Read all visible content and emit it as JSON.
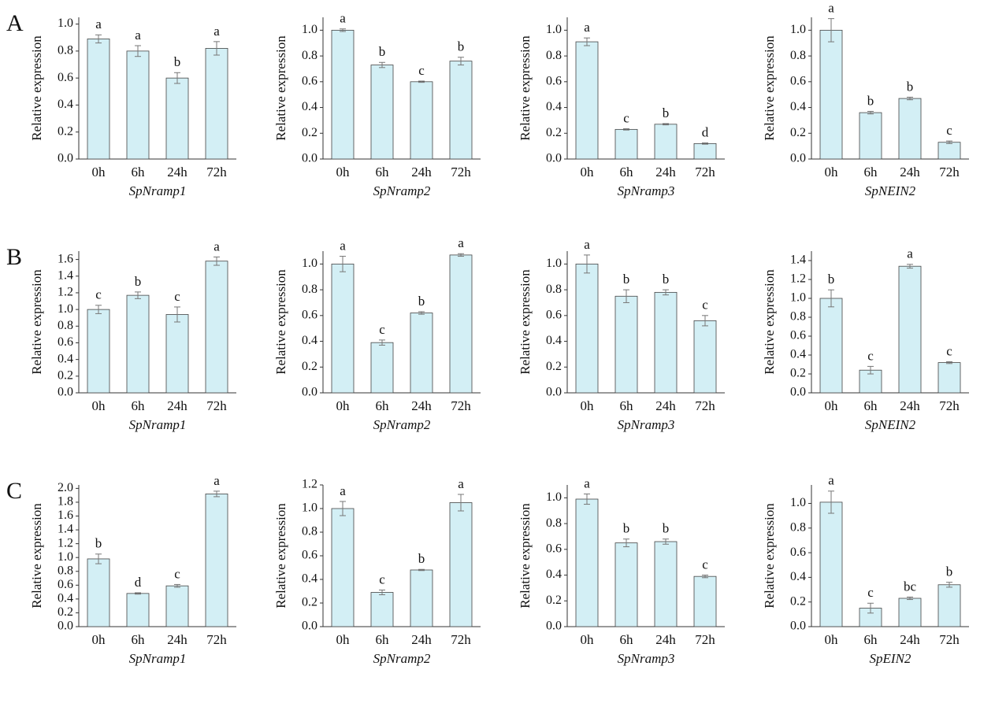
{
  "panel_labels": [
    "A",
    "B",
    "C"
  ],
  "chart_data": [
    {
      "type": "bar",
      "y_label": "Relative expression",
      "x_label": "SpNramp1",
      "categories": [
        "0h",
        "6h",
        "24h",
        "72h"
      ],
      "values": [
        0.89,
        0.8,
        0.6,
        0.82
      ],
      "errors": [
        0.03,
        0.04,
        0.04,
        0.05
      ],
      "annotations": [
        "a",
        "a",
        "b",
        "a"
      ],
      "ylim": [
        0,
        1.05
      ],
      "yticks": [
        {
          "value": 0,
          "label": "0.0"
        },
        0.2,
        0.4,
        0.6,
        0.8,
        {
          "value": 1,
          "label": "1.0"
        }
      ],
      "color": "#d3eff5"
    },
    {
      "type": "bar",
      "y_label": "Relative expression",
      "x_label": "SpNramp2",
      "categories": [
        "0h",
        "6h",
        "24h",
        "72h"
      ],
      "values": [
        1.0,
        0.73,
        0.6,
        0.76
      ],
      "errors": [
        0.01,
        0.02,
        0.005,
        0.03
      ],
      "annotations": [
        "a",
        "b",
        "c",
        "b"
      ],
      "ylim": [
        0,
        1.1
      ],
      "yticks": [
        {
          "value": 0,
          "label": "0.0"
        },
        0.2,
        0.4,
        0.6,
        0.8,
        {
          "value": 1,
          "label": "1.0"
        }
      ],
      "color": "#d3eff5"
    },
    {
      "type": "bar",
      "y_label": "Relative expression",
      "x_label": "SpNramp3",
      "categories": [
        "0h",
        "6h",
        "24h",
        "72h"
      ],
      "values": [
        0.91,
        0.23,
        0.27,
        0.12
      ],
      "errors": [
        0.03,
        0.005,
        0.005,
        0.005
      ],
      "annotations": [
        "a",
        "c",
        "b",
        "d"
      ],
      "ylim": [
        0,
        1.1
      ],
      "yticks": [
        {
          "value": 0,
          "label": "0.0"
        },
        0.2,
        0.4,
        0.6,
        0.8,
        {
          "value": 1,
          "label": "1.0"
        }
      ],
      "color": "#d3eff5"
    },
    {
      "type": "bar",
      "y_label": "Relative expression",
      "x_label": "SpNEIN2",
      "categories": [
        "0h",
        "6h",
        "24h",
        "72h"
      ],
      "values": [
        1.0,
        0.36,
        0.47,
        0.13
      ],
      "errors": [
        0.09,
        0.01,
        0.01,
        0.01
      ],
      "annotations": [
        "a",
        "b",
        "b",
        "c"
      ],
      "ylim": [
        0,
        1.1
      ],
      "yticks": [
        {
          "value": 0,
          "label": "0.0"
        },
        0.2,
        0.4,
        0.6,
        0.8,
        {
          "value": 1,
          "label": "1.0"
        }
      ],
      "color": "#d3eff5"
    },
    {
      "type": "bar",
      "y_label": "Relative expression",
      "x_label": "SpNramp1",
      "categories": [
        "0h",
        "6h",
        "24h",
        "72h"
      ],
      "values": [
        1.0,
        1.17,
        0.94,
        1.58
      ],
      "errors": [
        0.05,
        0.04,
        0.09,
        0.05
      ],
      "annotations": [
        "c",
        "b",
        "c",
        "a"
      ],
      "ylim": [
        0,
        1.7
      ],
      "yticks": [
        {
          "value": 0,
          "label": "0.0"
        },
        0.2,
        0.4,
        0.6,
        0.8,
        {
          "value": 1,
          "label": "1.0"
        },
        1.2,
        1.4,
        1.6
      ],
      "color": "#d3eff5"
    },
    {
      "type": "bar",
      "y_label": "Relative expression",
      "x_label": "SpNramp2",
      "categories": [
        "0h",
        "6h",
        "24h",
        "72h"
      ],
      "values": [
        1.0,
        0.39,
        0.62,
        1.07
      ],
      "errors": [
        0.06,
        0.02,
        0.01,
        0.01
      ],
      "annotations": [
        "a",
        "c",
        "b",
        "a"
      ],
      "ylim": [
        0,
        1.1
      ],
      "yticks": [
        {
          "value": 0,
          "label": "0.0"
        },
        0.2,
        0.4,
        0.6,
        0.8,
        {
          "value": 1,
          "label": "1.0"
        }
      ],
      "color": "#d3eff5"
    },
    {
      "type": "bar",
      "y_label": "Relative expression",
      "x_label": "SpNramp3",
      "categories": [
        "0h",
        "6h",
        "24h",
        "72h"
      ],
      "values": [
        1.0,
        0.75,
        0.78,
        0.56
      ],
      "errors": [
        0.07,
        0.05,
        0.02,
        0.04
      ],
      "annotations": [
        "a",
        "b",
        "b",
        "c"
      ],
      "ylim": [
        0,
        1.1
      ],
      "yticks": [
        {
          "value": 0,
          "label": "0.0"
        },
        0.2,
        0.4,
        0.6,
        0.8,
        {
          "value": 1,
          "label": "1.0"
        }
      ],
      "color": "#d3eff5"
    },
    {
      "type": "bar",
      "y_label": "Relative expression",
      "x_label": "SpNEIN2",
      "categories": [
        "0h",
        "6h",
        "24h",
        "72h"
      ],
      "values": [
        1.0,
        0.24,
        1.34,
        0.32
      ],
      "errors": [
        0.09,
        0.04,
        0.02,
        0.01
      ],
      "annotations": [
        "b",
        "c",
        "a",
        "c"
      ],
      "ylim": [
        0,
        1.5
      ],
      "yticks": [
        {
          "value": 0,
          "label": "0.0"
        },
        0.2,
        0.4,
        0.6,
        0.8,
        {
          "value": 1,
          "label": "1.0"
        },
        1.2,
        1.4
      ],
      "color": "#d3eff5"
    },
    {
      "type": "bar",
      "y_label": "Relative expression",
      "x_label": "SpNramp1",
      "categories": [
        "0h",
        "6h",
        "24h",
        "72h"
      ],
      "values": [
        0.98,
        0.48,
        0.59,
        1.92
      ],
      "errors": [
        0.07,
        0.01,
        0.02,
        0.04
      ],
      "annotations": [
        "b",
        "d",
        "c",
        "a"
      ],
      "ylim": [
        0,
        2.05
      ],
      "yticks": [
        {
          "value": 0,
          "label": "0.0"
        },
        0.2,
        0.4,
        0.6,
        0.8,
        {
          "value": 1,
          "label": "1.0"
        },
        1.2,
        1.4,
        1.6,
        1.8,
        {
          "value": 2,
          "label": "2.0"
        }
      ],
      "color": "#d3eff5"
    },
    {
      "type": "bar",
      "y_label": "Relative expression",
      "x_label": "SpNramp2",
      "categories": [
        "0h",
        "6h",
        "24h",
        "72h"
      ],
      "values": [
        1.0,
        0.29,
        0.48,
        1.05
      ],
      "errors": [
        0.06,
        0.02,
        0.005,
        0.07
      ],
      "annotations": [
        "a",
        "c",
        "b",
        "a"
      ],
      "ylim": [
        0,
        1.2
      ],
      "yticks": [
        {
          "value": 0,
          "label": "0.0"
        },
        0.2,
        0.4,
        0.6,
        0.8,
        {
          "value": 1,
          "label": "1.0"
        },
        1.2
      ],
      "color": "#d3eff5"
    },
    {
      "type": "bar",
      "y_label": "Relative expression",
      "x_label": "SpNramp3",
      "categories": [
        "0h",
        "6h",
        "24h",
        "72h"
      ],
      "values": [
        0.99,
        0.65,
        0.66,
        0.39
      ],
      "errors": [
        0.04,
        0.03,
        0.02,
        0.01
      ],
      "annotations": [
        "a",
        "b",
        "b",
        "c"
      ],
      "ylim": [
        0,
        1.1
      ],
      "yticks": [
        {
          "value": 0,
          "label": "0.0"
        },
        0.2,
        0.4,
        0.6,
        0.8,
        {
          "value": 1,
          "label": "1.0"
        }
      ],
      "color": "#d3eff5"
    },
    {
      "type": "bar",
      "y_label": "Relative expression",
      "x_label": "SpEIN2",
      "categories": [
        "0h",
        "6h",
        "24h",
        "72h"
      ],
      "values": [
        1.01,
        0.15,
        0.23,
        0.34
      ],
      "errors": [
        0.09,
        0.04,
        0.01,
        0.02
      ],
      "annotations": [
        "a",
        "c",
        "bc",
        "b"
      ],
      "ylim": [
        0,
        1.15
      ],
      "yticks": [
        {
          "value": 0,
          "label": "0.0"
        },
        0.2,
        0.4,
        0.6,
        0.8,
        {
          "value": 1,
          "label": "1.0"
        }
      ],
      "color": "#d3eff5"
    }
  ]
}
